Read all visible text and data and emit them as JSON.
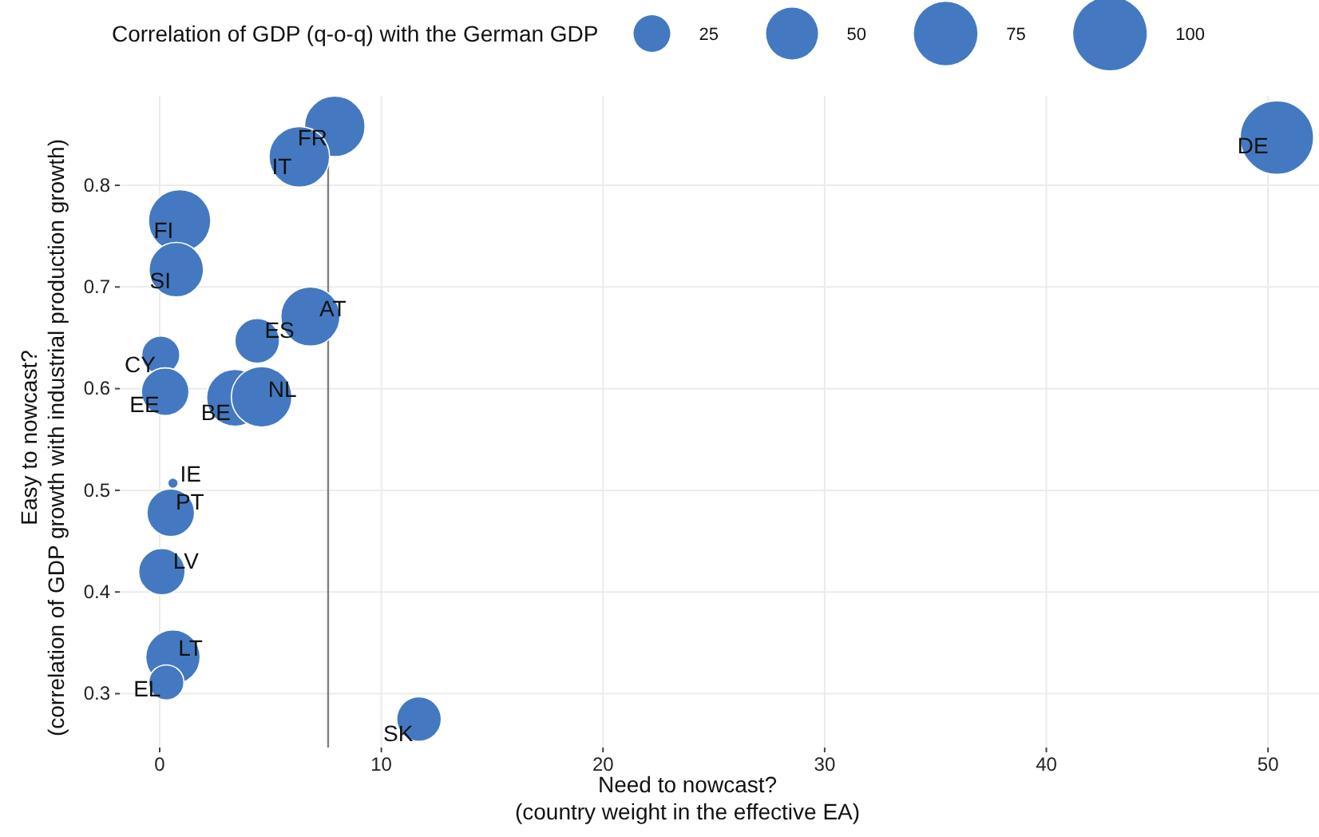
{
  "chart_data": {
    "type": "bubble",
    "xlabel": "Need to nowcast?\n(country weight in the effective EA)",
    "ylabel": "Easy to nowcast?\n(correlation of GDP growth with industrial production growth)",
    "legend_title": "Correlation of GDP (q-o-q) with the German GDP",
    "grid": true,
    "xlim": [
      -1.8,
      52.3
    ],
    "xticks": [
      0,
      10,
      20,
      30,
      40,
      50
    ],
    "ylim": [
      0.247,
      0.888
    ],
    "yticks": [
      0.3,
      0.4,
      0.5,
      0.6,
      0.7,
      0.8
    ],
    "size_legend": [
      25,
      50,
      75,
      100
    ],
    "series": [
      {
        "color": "#4479c1",
        "x": [
          50.4,
          7.9,
          6.3,
          0.9,
          0.75,
          6.8,
          4.4,
          0.05,
          0.25,
          3.4,
          4.6,
          0.6,
          0.5,
          0.1,
          0.6,
          0.3,
          11.7
        ],
        "values": [
          0.847,
          0.858,
          0.828,
          0.765,
          0.717,
          0.671,
          0.647,
          0.633,
          0.597,
          0.591,
          0.592,
          0.507,
          0.478,
          0.42,
          0.336,
          0.311,
          0.275
        ],
        "sizes": [
          100,
          68,
          68,
          72,
          55,
          65,
          37,
          27,
          42,
          60,
          68,
          2,
          42,
          40,
          55,
          23,
          37
        ]
      }
    ],
    "ref_lines": [
      {
        "axis": "x",
        "value": 7.6,
        "color": "#808080"
      }
    ],
    "annotations": [
      {
        "text": "DE",
        "x": 50.4,
        "y": 0.847
      },
      {
        "text": "FR",
        "x": 7.9,
        "y": 0.858
      },
      {
        "text": "IT",
        "x": 6.3,
        "y": 0.828
      },
      {
        "text": "FI",
        "x": 0.9,
        "y": 0.765
      },
      {
        "text": "SI",
        "x": 0.75,
        "y": 0.717
      },
      {
        "text": "AT",
        "x": 6.8,
        "y": 0.671
      },
      {
        "text": "ES",
        "x": 4.4,
        "y": 0.647
      },
      {
        "text": "CY",
        "x": 0.05,
        "y": 0.633
      },
      {
        "text": "EE",
        "x": 0.25,
        "y": 0.597
      },
      {
        "text": "BE",
        "x": 3.4,
        "y": 0.591
      },
      {
        "text": "NL",
        "x": 4.6,
        "y": 0.592
      },
      {
        "text": "IE",
        "x": 0.6,
        "y": 0.507
      },
      {
        "text": "PT",
        "x": 0.5,
        "y": 0.478
      },
      {
        "text": "LV",
        "x": 0.1,
        "y": 0.42
      },
      {
        "text": "LT",
        "x": 0.6,
        "y": 0.336
      },
      {
        "text": "EL",
        "x": 0.3,
        "y": 0.311
      },
      {
        "text": "SK",
        "x": 11.7,
        "y": 0.275
      }
    ]
  }
}
